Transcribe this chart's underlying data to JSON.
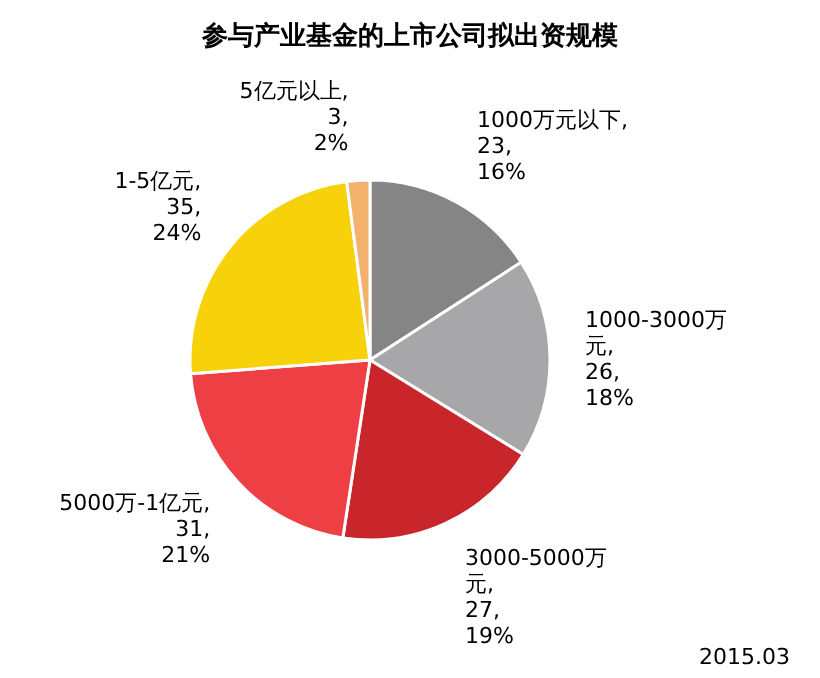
{
  "chart_data": {
    "type": "pie",
    "title": "参与产业基金的上市公司拟出资规模",
    "categories": [
      "1000万元以下",
      "1000-3000万元",
      "3000-5000万元",
      "5000万-1亿元",
      "1-5亿元",
      "5亿元以上"
    ],
    "values": [
      23,
      26,
      27,
      31,
      35,
      3
    ],
    "value_labels": [
      ", 23, 16%",
      ", 26, 18%",
      ", 27, 19%",
      ", 31, 21%",
      ", 35, 24%",
      ", 3, 2%"
    ],
    "colors": [
      "#858585",
      "#a7a7a9",
      "#c9262c",
      "#ee3f45",
      "#f7d10a",
      "#f2b16d"
    ],
    "annotations": [
      "2015.03"
    ]
  }
}
